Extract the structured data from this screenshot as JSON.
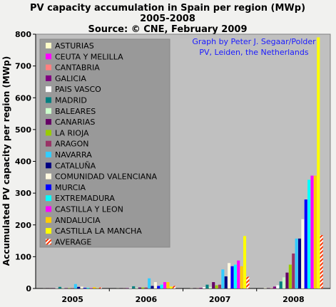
{
  "chart_data": {
    "type": "bar",
    "title_lines": [
      "PV capacity accumulation in Spain per region (MWp)",
      "2005-2008",
      "Source: © CNE, February 2009"
    ],
    "ylabel": "Accumulated PV capacity per region (MWp)",
    "xlabel": "",
    "categories": [
      "2005",
      "2006",
      "2007",
      "2008"
    ],
    "ylim": [
      0,
      800
    ],
    "yticks": [
      0,
      100,
      200,
      300,
      400,
      500,
      600,
      700,
      800
    ],
    "grid": false,
    "legend_position": "top-left",
    "credit_lines": [
      "Graph by Peter J. Segaar/Polder",
      "PV, Leiden, the Netherlands"
    ],
    "series": [
      {
        "name": "ASTURIAS",
        "color": "#fffcc8",
        "values": [
          0.2,
          0.3,
          0.5,
          1
        ]
      },
      {
        "name": "CEUTA Y MELILLA",
        "color": "#ff00ff",
        "values": [
          0.1,
          0.1,
          0.1,
          0.2
        ]
      },
      {
        "name": "CANTABRIA",
        "color": "#ff8080",
        "values": [
          0.2,
          0.3,
          0.5,
          1
        ]
      },
      {
        "name": "GALICIA",
        "color": "#800080",
        "values": [
          0.5,
          1,
          2,
          6
        ]
      },
      {
        "name": "PAIS VASCO",
        "color": "#ffffff",
        "values": [
          1,
          2,
          4,
          10
        ]
      },
      {
        "name": "MADRID",
        "color": "#008080",
        "values": [
          5,
          7,
          12,
          22
        ]
      },
      {
        "name": "BALEARES",
        "color": "#ccffcc",
        "values": [
          1,
          2,
          5,
          35
        ]
      },
      {
        "name": "CANARIAS",
        "color": "#660066",
        "values": [
          1,
          3,
          20,
          50
        ]
      },
      {
        "name": "LA RIOJA",
        "color": "#99cc00",
        "values": [
          1,
          3,
          10,
          75
        ]
      },
      {
        "name": "ARAGON",
        "color": "#993366",
        "values": [
          1,
          3,
          12,
          110
        ]
      },
      {
        "name": "NAVARRA",
        "color": "#33ccff",
        "values": [
          14,
          32,
          60,
          157
        ]
      },
      {
        "name": "CATALUÑA",
        "color": "#000080",
        "values": [
          5,
          8,
          38,
          157
        ]
      },
      {
        "name": "COMUNIDAD VALENCIANA",
        "color": "#fff8e0",
        "values": [
          6,
          20,
          80,
          218
        ]
      },
      {
        "name": "MURCIA",
        "color": "#0000ff",
        "values": [
          2,
          8,
          70,
          280
        ]
      },
      {
        "name": "EXTREMADURA",
        "color": "#00ffff",
        "values": [
          2,
          12,
          75,
          342
        ]
      },
      {
        "name": "CASTILLA Y LEON",
        "color": "#ff00ff",
        "values": [
          1,
          20,
          88,
          355
        ]
      },
      {
        "name": "ANDALUCIA",
        "color": "#ffcc00",
        "values": [
          4,
          20,
          70,
          355
        ]
      },
      {
        "name": "CASTILLA LA MANCHA",
        "color": "#ffff00",
        "values": [
          1,
          6,
          165,
          790
        ]
      },
      {
        "name": "AVERAGE",
        "color": "#ff3300",
        "pattern": "hatch",
        "values": [
          3,
          8,
          37,
          168
        ]
      }
    ]
  }
}
